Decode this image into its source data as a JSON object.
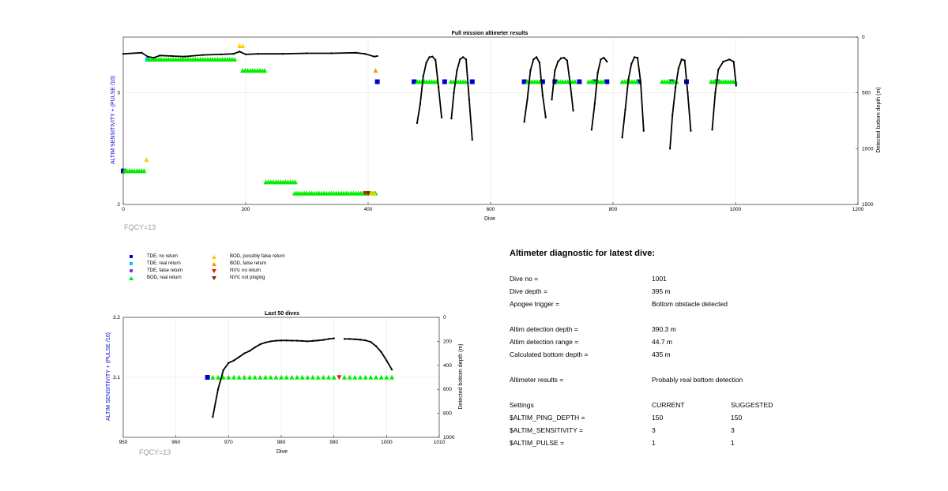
{
  "chart_data": [
    {
      "type": "scatter",
      "title": "Full mission altimeter results",
      "xlabel": "Dive",
      "ylabel_left": "ALTIM SENSITIVITY + (PULSE /10)",
      "ylabel_right": "Detected bottom depth (m)",
      "xlim": [
        0,
        1200
      ],
      "xticks": [
        0,
        200,
        400,
        600,
        800,
        1000,
        1200
      ],
      "ylim_left": [
        2,
        3.5
      ],
      "yticks_left": [
        2,
        3
      ],
      "ylim_right": [
        1500,
        0
      ],
      "yticks_right": [
        0,
        500,
        1000,
        1500
      ],
      "grid": true,
      "annotation": "FQCY=13",
      "series": [
        {
          "name": "TDE, no return",
          "marker": "square",
          "color": "#0000cc",
          "points": [
            [
              0,
              2.3
            ],
            [
              415,
              3.1
            ],
            [
              475,
              3.1
            ],
            [
              525,
              3.1
            ],
            [
              570,
              3.1
            ],
            [
              655,
              3.1
            ],
            [
              685,
              3.1
            ],
            [
              705,
              3.1
            ],
            [
              745,
              3.1
            ],
            [
              770,
              3.1
            ],
            [
              790,
              3.1
            ],
            [
              842,
              3.1
            ],
            [
              895,
              3.1
            ],
            [
              920,
              3.1
            ],
            [
              970,
              3.1
            ]
          ]
        },
        {
          "name": "TDE, real return",
          "marker": "square",
          "color": "#00ccee",
          "points": [
            [
              40,
              3.3
            ]
          ]
        },
        {
          "name": "TDE, false return",
          "marker": "square",
          "color": "#8833cc",
          "points": []
        },
        {
          "name": "BOD, real return",
          "marker": "triangle-up",
          "color": "#00ee00",
          "ranges": [
            [
              2,
              37,
              2.3
            ],
            [
              42,
              185,
              3.3
            ],
            [
              195,
              232,
              3.2
            ],
            [
              233,
              282,
              2.2
            ],
            [
              280,
              412,
              2.1
            ],
            [
              480,
              515,
              3.1
            ],
            [
              535,
              560,
              3.1
            ],
            [
              660,
              680,
              3.1
            ],
            [
              710,
              740,
              3.1
            ],
            [
              760,
              785,
              3.1
            ],
            [
              815,
              840,
              3.1
            ],
            [
              880,
              905,
              3.1
            ],
            [
              960,
              1000,
              3.1
            ]
          ]
        },
        {
          "name": "BOD, possibly false return",
          "marker": "triangle-up",
          "color": "#ffcc00",
          "points": [
            [
              38,
              2.4
            ],
            [
              190,
              3.42
            ],
            [
              195,
              3.42
            ],
            [
              405,
              2.1
            ],
            [
              410,
              2.1
            ]
          ]
        },
        {
          "name": "BOD, false return",
          "marker": "triangle-up",
          "color": "#ff9900",
          "points": [
            [
              412,
              3.2
            ]
          ]
        },
        {
          "name": "NVV, no return",
          "marker": "triangle-down",
          "color": "#dd2200",
          "points": [
            [
              395,
              2.1
            ]
          ]
        },
        {
          "name": "NVV, not pinging",
          "marker": "triangle-down",
          "color": "#882200",
          "points": [
            [
              400,
              2.1
            ]
          ]
        }
      ],
      "depth_segments": [
        [
          [
            0,
            150
          ],
          [
            30,
            140
          ],
          [
            40,
            175
          ],
          [
            50,
            185
          ],
          [
            60,
            165
          ],
          [
            80,
            170
          ],
          [
            100,
            175
          ],
          [
            130,
            160
          ],
          [
            160,
            155
          ],
          [
            180,
            150
          ],
          [
            190,
            130
          ],
          [
            200,
            155
          ],
          [
            220,
            150
          ],
          [
            260,
            150
          ],
          [
            300,
            145
          ],
          [
            340,
            145
          ],
          [
            380,
            140
          ],
          [
            395,
            150
          ],
          [
            410,
            175
          ],
          [
            415,
            170
          ]
        ],
        [
          [
            480,
            770
          ],
          [
            485,
            600
          ],
          [
            490,
            350
          ],
          [
            495,
            230
          ],
          [
            500,
            180
          ],
          [
            505,
            175
          ],
          [
            510,
            205
          ],
          [
            515,
            450
          ],
          [
            520,
            720
          ]
        ],
        [
          [
            536,
            730
          ],
          [
            540,
            500
          ],
          [
            545,
            300
          ],
          [
            550,
            200
          ],
          [
            555,
            180
          ],
          [
            560,
            200
          ],
          [
            565,
            560
          ],
          [
            570,
            920
          ]
        ],
        [
          [
            655,
            760
          ],
          [
            660,
            560
          ],
          [
            665,
            300
          ],
          [
            670,
            200
          ],
          [
            675,
            180
          ],
          [
            680,
            230
          ],
          [
            685,
            520
          ],
          [
            690,
            720
          ]
        ],
        [
          [
            700,
            560
          ],
          [
            705,
            300
          ],
          [
            710,
            220
          ],
          [
            715,
            190
          ],
          [
            720,
            185
          ],
          [
            725,
            210
          ],
          [
            730,
            420
          ],
          [
            735,
            660
          ]
        ],
        [
          [
            765,
            830
          ],
          [
            770,
            600
          ],
          [
            775,
            320
          ],
          [
            780,
            200
          ],
          [
            785,
            185
          ],
          [
            790,
            220
          ]
        ],
        [
          [
            815,
            900
          ],
          [
            820,
            650
          ],
          [
            825,
            380
          ],
          [
            830,
            240
          ],
          [
            835,
            180
          ],
          [
            840,
            185
          ],
          [
            845,
            400
          ],
          [
            850,
            840
          ]
        ],
        [
          [
            893,
            1000
          ],
          [
            897,
            700
          ],
          [
            902,
            450
          ],
          [
            907,
            280
          ],
          [
            912,
            200
          ],
          [
            917,
            210
          ],
          [
            922,
            500
          ],
          [
            927,
            840
          ]
        ],
        [
          [
            962,
            830
          ],
          [
            967,
            500
          ],
          [
            972,
            290
          ],
          [
            980,
            220
          ],
          [
            990,
            200
          ],
          [
            997,
            220
          ],
          [
            1001,
            435
          ]
        ]
      ]
    },
    {
      "type": "scatter",
      "title": "Last 50 dives",
      "xlabel": "Dive",
      "ylabel_left": "ALTIM SENSITIVITY + (PULSE /10)",
      "ylabel_right": "Detected bottom depth (m)",
      "xlim": [
        950,
        1010
      ],
      "xticks": [
        950,
        960,
        970,
        980,
        990,
        1000,
        1010
      ],
      "ylim_left": [
        3.0,
        3.2
      ],
      "yticks_left": [
        3.1,
        3.2
      ],
      "ylim_right": [
        1000,
        0
      ],
      "yticks_right": [
        0,
        200,
        400,
        600,
        800,
        1000
      ],
      "grid": true,
      "annotation": "FQCY=13",
      "tde_no_return": [
        966
      ],
      "bod_real_return": [
        967,
        968,
        969,
        970,
        971,
        972,
        973,
        974,
        975,
        976,
        977,
        978,
        979,
        980,
        981,
        982,
        983,
        984,
        985,
        986,
        987,
        988,
        989,
        990,
        992,
        993,
        994,
        995,
        996,
        997,
        998,
        999,
        1000,
        1001
      ],
      "nvv_no_return": [
        991
      ],
      "depth_segments": [
        [
          [
            967,
            830
          ],
          [
            968,
            600
          ],
          [
            969,
            440
          ],
          [
            970,
            380
          ],
          [
            971,
            360
          ],
          [
            972,
            330
          ],
          [
            973,
            300
          ],
          [
            974,
            280
          ],
          [
            975,
            250
          ],
          [
            976,
            225
          ],
          [
            977,
            210
          ],
          [
            978,
            200
          ],
          [
            979,
            195
          ],
          [
            980,
            193
          ],
          [
            981,
            193
          ],
          [
            982,
            194
          ],
          [
            983,
            195
          ],
          [
            984,
            197
          ],
          [
            985,
            200
          ],
          [
            986,
            196
          ],
          [
            987,
            193
          ],
          [
            988,
            188
          ],
          [
            989,
            180
          ],
          [
            990,
            175
          ]
        ],
        [
          [
            992,
            180
          ],
          [
            993,
            180
          ],
          [
            994,
            183
          ],
          [
            995,
            186
          ],
          [
            996,
            192
          ],
          [
            997,
            205
          ],
          [
            998,
            240
          ],
          [
            999,
            290
          ],
          [
            1000,
            360
          ],
          [
            1001,
            435
          ]
        ]
      ]
    }
  ],
  "legend": {
    "entries": [
      {
        "label": "TDE, no return",
        "symbol": "square",
        "color": "#0000cc"
      },
      {
        "label": "TDE, real return",
        "symbol": "square",
        "color": "#00ccee"
      },
      {
        "label": "TDE, false return",
        "symbol": "square",
        "color": "#8833cc"
      },
      {
        "label": "BOD, real return",
        "symbol": "triangle-up",
        "color": "#00ee00"
      },
      {
        "label": "BOD, possibly false return",
        "symbol": "triangle-up",
        "color": "#ffcc00"
      },
      {
        "label": "BOD, false return",
        "symbol": "triangle-up",
        "color": "#ff9900"
      },
      {
        "label": "NVV, no return",
        "symbol": "triangle-down",
        "color": "#dd2200"
      },
      {
        "label": "NVV, not pinging",
        "symbol": "triangle-down",
        "color": "#882200"
      }
    ]
  },
  "diagnostic": {
    "title": "Altimeter diagnostic for latest dive:",
    "dive_no_label": "Dive no =",
    "dive_no_value": "1001",
    "dive_depth_label": "Dive depth =",
    "dive_depth_value": "395 m",
    "apogee_label": "Apogee trigger =",
    "apogee_value": "Bottom obstacle detected",
    "detect_depth_label": "Altim detection depth =",
    "detect_depth_value": "390.3 m",
    "detect_range_label": "Altim detection range =",
    "detect_range_value": "44.7 m",
    "calc_bottom_label": "Calculated bottom depth =",
    "calc_bottom_value": "435 m",
    "results_label": "Altimeter results =",
    "results_value": "Probably real bottom detection",
    "settings_label": "Settings",
    "current_header": "CURRENT",
    "suggested_header": "SUGGESTED",
    "settings": [
      {
        "name": "$ALTIM_PING_DEPTH =",
        "current": "150",
        "suggested": "150"
      },
      {
        "name": "$ALTIM_SENSITIVITY =",
        "current": "3",
        "suggested": "3"
      },
      {
        "name": "$ALTIM_PULSE =",
        "current": "1",
        "suggested": "1"
      }
    ]
  },
  "colors": {
    "depth_line": "#000000",
    "left_axis_label": "#0000cc",
    "annotation": "#9a9a9a",
    "grid": "#e6e6e6"
  }
}
